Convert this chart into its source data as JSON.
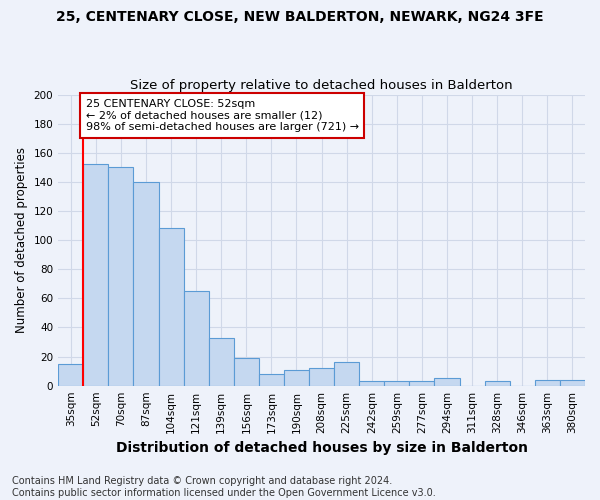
{
  "title": "25, CENTENARY CLOSE, NEW BALDERTON, NEWARK, NG24 3FE",
  "subtitle": "Size of property relative to detached houses in Balderton",
  "xlabel": "Distribution of detached houses by size in Balderton",
  "ylabel": "Number of detached properties",
  "categories": [
    "35sqm",
    "52sqm",
    "70sqm",
    "87sqm",
    "104sqm",
    "121sqm",
    "139sqm",
    "156sqm",
    "173sqm",
    "190sqm",
    "208sqm",
    "225sqm",
    "242sqm",
    "259sqm",
    "277sqm",
    "294sqm",
    "311sqm",
    "328sqm",
    "346sqm",
    "363sqm",
    "380sqm"
  ],
  "values": [
    15,
    152,
    150,
    140,
    108,
    65,
    33,
    19,
    8,
    11,
    12,
    16,
    3,
    3,
    3,
    5,
    0,
    3,
    0,
    4,
    4
  ],
  "bar_color": "#c5d8f0",
  "bar_edge_color": "#5b9bd5",
  "highlight_color": "#ff0000",
  "vline_x_index": 1,
  "annotation_line1": "25 CENTENARY CLOSE: 52sqm",
  "annotation_line2": "← 2% of detached houses are smaller (12)",
  "annotation_line3": "98% of semi-detached houses are larger (721) →",
  "annotation_box_color": "#ffffff",
  "annotation_box_edge": "#cc0000",
  "ylim": [
    0,
    200
  ],
  "yticks": [
    0,
    20,
    40,
    60,
    80,
    100,
    120,
    140,
    160,
    180,
    200
  ],
  "footer_line1": "Contains HM Land Registry data © Crown copyright and database right 2024.",
  "footer_line2": "Contains public sector information licensed under the Open Government Licence v3.0.",
  "bg_color": "#eef2fa",
  "grid_color": "#d0d8e8",
  "title_fontsize": 10,
  "subtitle_fontsize": 9.5,
  "xlabel_fontsize": 10,
  "ylabel_fontsize": 8.5,
  "tick_fontsize": 7.5,
  "footer_fontsize": 7,
  "annotation_fontsize": 8
}
